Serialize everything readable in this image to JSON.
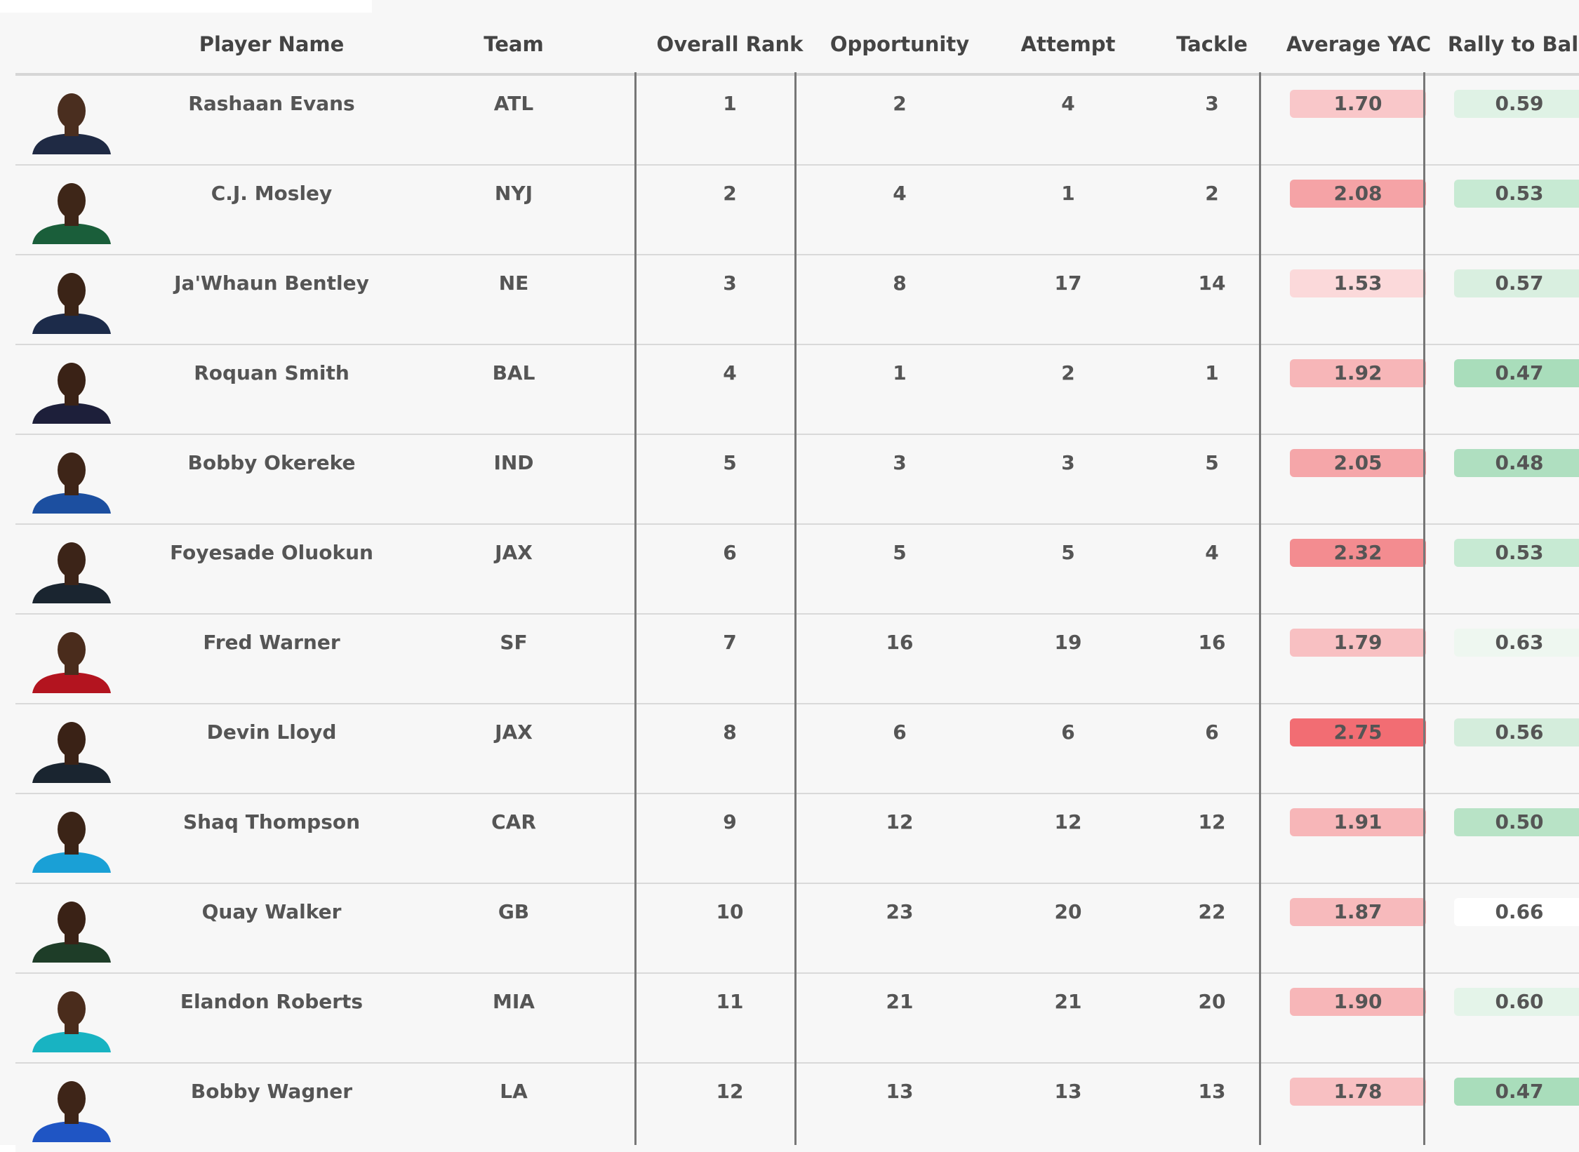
{
  "headers": {
    "player": "Player Name",
    "team": "Team",
    "overall_rank": "Overall Rank",
    "opportunity": "Opportunity",
    "attempt": "Attempt",
    "tackle": "Tackle",
    "avg_yac": "Average YAC",
    "rally": "Rally to Ball"
  },
  "rows": [
    {
      "name": "Rashaan Evans",
      "team": "ATL",
      "rank": "1",
      "opp": "2",
      "att": "4",
      "tackle": "3",
      "yac": "1.70",
      "rally": "0.59",
      "jersey": "#1f2a44",
      "skin": "#4a2e1f",
      "yac_color": "#f9c7c9",
      "rally_color": "#dff2e5"
    },
    {
      "name": "C.J. Mosley",
      "team": "NYJ",
      "rank": "2",
      "opp": "4",
      "att": "1",
      "tackle": "2",
      "yac": "2.08",
      "rally": "0.53",
      "jersey": "#1a5e3a",
      "skin": "#3e2618",
      "yac_color": "#f5a3a6",
      "rally_color": "#c7ead3"
    },
    {
      "name": "Ja'Whaun Bentley",
      "team": "NE",
      "rank": "3",
      "opp": "8",
      "att": "17",
      "tackle": "14",
      "yac": "1.53",
      "rally": "0.57",
      "jersey": "#1c2b4a",
      "skin": "#3b2417",
      "yac_color": "#fbd9da",
      "rally_color": "#d9efe0"
    },
    {
      "name": "Roquan Smith",
      "team": "BAL",
      "rank": "4",
      "opp": "1",
      "att": "2",
      "tackle": "1",
      "yac": "1.92",
      "rally": "0.47",
      "jersey": "#1d1f3a",
      "skin": "#3a2216",
      "yac_color": "#f7b6b8",
      "rally_color": "#a9ddbb"
    },
    {
      "name": "Bobby Okereke",
      "team": "IND",
      "rank": "5",
      "opp": "3",
      "att": "3",
      "tackle": "5",
      "yac": "2.05",
      "rally": "0.48",
      "jersey": "#1c4fa0",
      "skin": "#3e2518",
      "yac_color": "#f5a6a9",
      "rally_color": "#afdfc0"
    },
    {
      "name": "Foyesade Oluokun",
      "team": "JAX",
      "rank": "6",
      "opp": "5",
      "att": "5",
      "tackle": "4",
      "yac": "2.32",
      "rally": "0.53",
      "jersey": "#1a2530",
      "skin": "#3c2418",
      "yac_color": "#f38c90",
      "rally_color": "#c7ead3"
    },
    {
      "name": "Fred Warner",
      "team": "SF",
      "rank": "7",
      "opp": "16",
      "att": "19",
      "tackle": "16",
      "yac": "1.79",
      "rally": "0.63",
      "jersey": "#b3141f",
      "skin": "#4a2c1c",
      "yac_color": "#f8c0c2",
      "rally_color": "#eef7f0"
    },
    {
      "name": "Devin Lloyd",
      "team": "JAX",
      "rank": "8",
      "opp": "6",
      "att": "6",
      "tackle": "6",
      "yac": "2.75",
      "rally": "0.56",
      "jersey": "#1a2530",
      "skin": "#3a2216",
      "yac_color": "#f26d73",
      "rally_color": "#d4eddc"
    },
    {
      "name": "Shaq Thompson",
      "team": "CAR",
      "rank": "9",
      "opp": "12",
      "att": "12",
      "tackle": "12",
      "yac": "1.91",
      "rally": "0.50",
      "jersey": "#1aa0d6",
      "skin": "#3b2417",
      "yac_color": "#f7b6b8",
      "rally_color": "#b8e3c6"
    },
    {
      "name": "Quay Walker",
      "team": "GB",
      "rank": "10",
      "opp": "23",
      "att": "20",
      "tackle": "22",
      "yac": "1.87",
      "rally": "0.66",
      "jersey": "#1e3d28",
      "skin": "#3a2216",
      "yac_color": "#f7babc",
      "rally_color": "#ffffff"
    },
    {
      "name": "Elandon Roberts",
      "team": "MIA",
      "rank": "11",
      "opp": "21",
      "att": "21",
      "tackle": "20",
      "yac": "1.90",
      "rally": "0.60",
      "jersey": "#18b3c2",
      "skin": "#4a2c1c",
      "yac_color": "#f7b6b8",
      "rally_color": "#e4f4e9"
    },
    {
      "name": "Bobby Wagner",
      "team": "LA",
      "rank": "12",
      "opp": "13",
      "att": "13",
      "tackle": "13",
      "yac": "1.78",
      "rally": "0.47",
      "jersey": "#1f55c4",
      "skin": "#3e2518",
      "yac_color": "#f8c0c2",
      "rally_color": "#a9ddbb"
    }
  ]
}
